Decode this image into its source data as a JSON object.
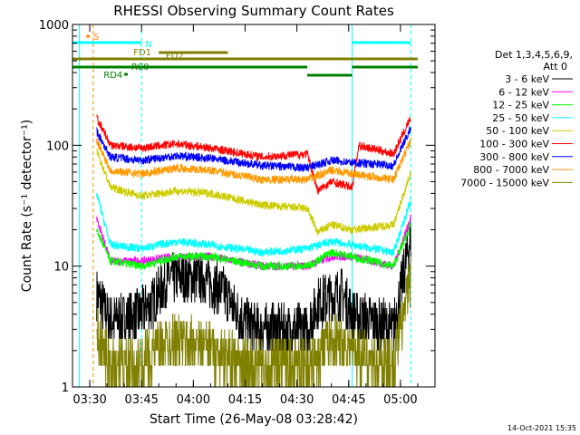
{
  "chart_data": {
    "type": "line",
    "title": "RHESSI Observing Summary Count Rates",
    "xlabel": "Start Time (26-May-08 03:28:42)",
    "ylabel": "Count Rate (s⁻¹ detector⁻¹)",
    "yscale": "log",
    "ylim": [
      1,
      1000
    ],
    "xlim": [
      "03:25",
      "05:10"
    ],
    "x_ticks": [
      "03:30",
      "03:45",
      "04:00",
      "04:15",
      "04:30",
      "04:45",
      "05:00"
    ],
    "y_ticks": [
      "1",
      "10",
      "100",
      "1000"
    ],
    "footer": "14-Oct-2021 15:35",
    "legend_header": [
      "Det 1,3,4,5,6,9,",
      "Att 0"
    ],
    "series": [
      {
        "name": "3 - 6 keV",
        "color": "#000000",
        "values": [
          {
            "t": "03:32",
            "y": 6
          },
          {
            "t": "03:36",
            "y": 3.5
          },
          {
            "t": "03:44",
            "y": 4
          },
          {
            "t": "03:48",
            "y": 5
          },
          {
            "t": "03:53",
            "y": 8
          },
          {
            "t": "04:03",
            "y": 8
          },
          {
            "t": "04:09",
            "y": 6
          },
          {
            "t": "04:13",
            "y": 4
          },
          {
            "t": "04:18",
            "y": 3
          },
          {
            "t": "04:33",
            "y": 3
          },
          {
            "t": "04:36",
            "y": 5
          },
          {
            "t": "04:43",
            "y": 6
          },
          {
            "t": "04:46",
            "y": 4
          },
          {
            "t": "04:58",
            "y": 3
          },
          {
            "t": "05:03",
            "y": 18
          }
        ]
      },
      {
        "name": "6 - 12 keV",
        "color": "#ff00ff",
        "values": [
          {
            "t": "03:32",
            "y": 25
          },
          {
            "t": "03:36",
            "y": 11
          },
          {
            "t": "03:45",
            "y": 11
          },
          {
            "t": "03:55",
            "y": 12
          },
          {
            "t": "04:05",
            "y": 12
          },
          {
            "t": "04:20",
            "y": 10
          },
          {
            "t": "04:33",
            "y": 10
          },
          {
            "t": "04:40",
            "y": 12
          },
          {
            "t": "04:46",
            "y": 12
          },
          {
            "t": "04:58",
            "y": 10
          },
          {
            "t": "05:03",
            "y": 25
          }
        ]
      },
      {
        "name": "12 - 25 keV",
        "color": "#00ff00",
        "values": [
          {
            "t": "03:32",
            "y": 20
          },
          {
            "t": "03:36",
            "y": 11
          },
          {
            "t": "03:45",
            "y": 10
          },
          {
            "t": "03:55",
            "y": 12
          },
          {
            "t": "04:05",
            "y": 12
          },
          {
            "t": "04:20",
            "y": 10
          },
          {
            "t": "04:33",
            "y": 10
          },
          {
            "t": "04:40",
            "y": 13
          },
          {
            "t": "04:46",
            "y": 12
          },
          {
            "t": "04:58",
            "y": 10
          },
          {
            "t": "05:03",
            "y": 22
          }
        ]
      },
      {
        "name": "25 - 50 keV",
        "color": "#00ffff",
        "values": [
          {
            "t": "03:32",
            "y": 40
          },
          {
            "t": "03:36",
            "y": 15
          },
          {
            "t": "03:45",
            "y": 14
          },
          {
            "t": "03:55",
            "y": 16
          },
          {
            "t": "04:05",
            "y": 15
          },
          {
            "t": "04:20",
            "y": 13
          },
          {
            "t": "04:33",
            "y": 14
          },
          {
            "t": "04:40",
            "y": 16
          },
          {
            "t": "04:46",
            "y": 15
          },
          {
            "t": "04:58",
            "y": 13
          },
          {
            "t": "05:03",
            "y": 35
          }
        ]
      },
      {
        "name": "50 - 100 keV",
        "color": "#cccc00",
        "values": [
          {
            "t": "03:32",
            "y": 90
          },
          {
            "t": "03:36",
            "y": 45
          },
          {
            "t": "03:45",
            "y": 38
          },
          {
            "t": "03:55",
            "y": 42
          },
          {
            "t": "04:05",
            "y": 40
          },
          {
            "t": "04:20",
            "y": 32
          },
          {
            "t": "04:33",
            "y": 30
          },
          {
            "t": "04:36",
            "y": 19
          },
          {
            "t": "04:40",
            "y": 22
          },
          {
            "t": "04:46",
            "y": 20
          },
          {
            "t": "04:58",
            "y": 22
          },
          {
            "t": "05:03",
            "y": 60
          }
        ]
      },
      {
        "name": "100 - 300 keV",
        "color": "#ff0000",
        "values": [
          {
            "t": "03:32",
            "y": 170
          },
          {
            "t": "03:36",
            "y": 100
          },
          {
            "t": "03:45",
            "y": 95
          },
          {
            "t": "03:55",
            "y": 103
          },
          {
            "t": "04:05",
            "y": 95
          },
          {
            "t": "04:20",
            "y": 80
          },
          {
            "t": "04:33",
            "y": 85
          },
          {
            "t": "04:36",
            "y": 42
          },
          {
            "t": "04:40",
            "y": 50
          },
          {
            "t": "04:46",
            "y": 45
          },
          {
            "t": "04:48",
            "y": 100
          },
          {
            "t": "04:58",
            "y": 85
          },
          {
            "t": "05:03",
            "y": 170
          }
        ]
      },
      {
        "name": "300 - 800 keV",
        "color": "#0000ff",
        "values": [
          {
            "t": "03:32",
            "y": 130
          },
          {
            "t": "03:36",
            "y": 80
          },
          {
            "t": "03:45",
            "y": 75
          },
          {
            "t": "03:55",
            "y": 82
          },
          {
            "t": "04:05",
            "y": 78
          },
          {
            "t": "04:20",
            "y": 68
          },
          {
            "t": "04:33",
            "y": 65
          },
          {
            "t": "04:40",
            "y": 75
          },
          {
            "t": "04:46",
            "y": 72
          },
          {
            "t": "04:58",
            "y": 68
          },
          {
            "t": "05:03",
            "y": 140
          }
        ]
      },
      {
        "name": "800 - 7000 keV",
        "color": "#ff9900",
        "values": [
          {
            "t": "03:32",
            "y": 110
          },
          {
            "t": "03:36",
            "y": 62
          },
          {
            "t": "03:45",
            "y": 58
          },
          {
            "t": "03:55",
            "y": 65
          },
          {
            "t": "04:05",
            "y": 62
          },
          {
            "t": "04:20",
            "y": 52
          },
          {
            "t": "04:33",
            "y": 52
          },
          {
            "t": "04:40",
            "y": 62
          },
          {
            "t": "04:46",
            "y": 58
          },
          {
            "t": "04:58",
            "y": 52
          },
          {
            "t": "05:03",
            "y": 110
          }
        ]
      },
      {
        "name": "7000 - 15000 keV",
        "color": "#808000",
        "values": [
          {
            "t": "03:32",
            "y": 3
          },
          {
            "t": "03:36",
            "y": 1.5
          },
          {
            "t": "03:45",
            "y": 1.6
          },
          {
            "t": "03:53",
            "y": 2.5
          },
          {
            "t": "04:03",
            "y": 2.2
          },
          {
            "t": "04:15",
            "y": 1.5
          },
          {
            "t": "04:33",
            "y": 1.5
          },
          {
            "t": "04:40",
            "y": 2.5
          },
          {
            "t": "04:46",
            "y": 2
          },
          {
            "t": "04:58",
            "y": 1.5
          },
          {
            "t": "05:03",
            "y": 8
          }
        ]
      }
    ],
    "flag_bars": [
      {
        "label": "S",
        "color": "#ff8800",
        "start": "03:29",
        "end": "03:30"
      },
      {
        "label": "N",
        "color": "#00ffff",
        "start": "03:25",
        "end": "03:45"
      },
      {
        "label": "",
        "color": "#00ffff",
        "start": "04:46",
        "end": "05:03"
      },
      {
        "label": "FD1",
        "color": "#808000",
        "start": "03:50",
        "end": "04:10"
      },
      {
        "label": "FD2",
        "color": "#808000",
        "start": "03:25",
        "end": "05:05"
      },
      {
        "label": "RC0",
        "color": "#008000",
        "start": "03:25",
        "end": "04:33"
      },
      {
        "label": "",
        "color": "#008000",
        "start": "04:33",
        "end": "04:46"
      },
      {
        "label": "",
        "color": "#008000",
        "start": "04:46",
        "end": "05:05"
      },
      {
        "label": "RD4",
        "color": "#008000",
        "start": "03:40",
        "end": "03:41"
      }
    ],
    "markers": [
      {
        "t": "03:27",
        "color": "#00ffff",
        "style": "solid"
      },
      {
        "t": "03:31",
        "color": "#ff8800",
        "style": "dashed"
      },
      {
        "t": "03:45",
        "color": "#00ffff",
        "style": "dashed"
      },
      {
        "t": "04:46",
        "color": "#00ffff",
        "style": "solid"
      },
      {
        "t": "05:03",
        "color": "#00ffff",
        "style": "dashed"
      }
    ]
  }
}
